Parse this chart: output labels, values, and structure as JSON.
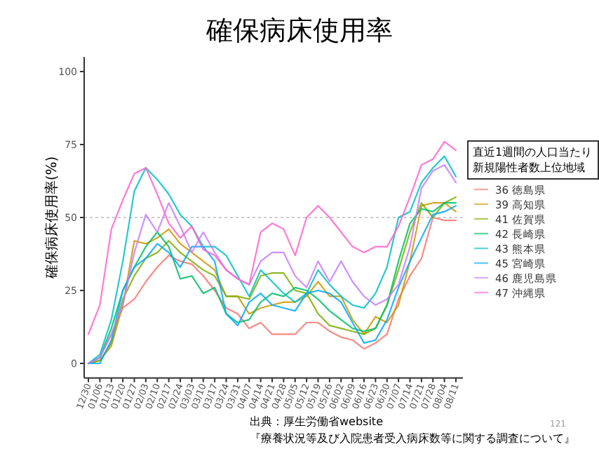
{
  "chart_data": {
    "type": "line",
    "title": "確保病床使用率",
    "ylabel": "確保病床使用率(%)",
    "legend_title": "直近1週間の人口当たり新規陽性者数上位地域",
    "legend": "right",
    "grid": false,
    "categories": [
      "12/30",
      "01/06",
      "01/13",
      "01/20",
      "01/27",
      "02/03",
      "02/10",
      "02/17",
      "02/24",
      "03/03",
      "03/10",
      "03/17",
      "03/24",
      "03/31",
      "04/07",
      "04/14",
      "04/21",
      "04/28",
      "05/05",
      "05/12",
      "05/19",
      "05/26",
      "06/02",
      "06/09",
      "06/16",
      "06/23",
      "06/30",
      "07/07",
      "07/14",
      "07/21",
      "07/28",
      "08/04",
      "08/11"
    ],
    "ylim": [
      -5,
      105
    ],
    "yticks": [
      0,
      25,
      50,
      75,
      100
    ],
    "ref_lines": [
      {
        "axis": "y",
        "value": 50,
        "color": "#cccccc",
        "line_style": "dotted"
      }
    ],
    "series": [
      {
        "name": "36 徳島県",
        "color": "#F8766D",
        "values": [
          0,
          2,
          10,
          19,
          22,
          28,
          33,
          37,
          35,
          34,
          30,
          25,
          19,
          17,
          12,
          14,
          10,
          10,
          10,
          14,
          14,
          11,
          9,
          8,
          5,
          7,
          10,
          22,
          30,
          36,
          50,
          49,
          49
        ]
      },
      {
        "name": "39 高知県",
        "color": "#CD9600",
        "values": [
          0,
          1,
          6,
          20,
          42,
          41,
          43,
          46,
          41,
          38,
          35,
          32,
          23,
          23,
          17,
          19,
          20,
          21,
          21,
          23,
          28,
          23,
          23,
          15,
          10,
          16,
          14,
          20,
          35,
          54,
          55,
          55,
          52
        ]
      },
      {
        "name": "41 佐賀県",
        "color": "#7CAE00",
        "values": [
          0,
          1,
          7,
          22,
          30,
          36,
          38,
          42,
          38,
          35,
          32,
          30,
          23,
          23,
          22,
          30,
          31,
          31,
          25,
          24,
          17,
          13,
          12,
          11,
          10,
          12,
          20,
          32,
          45,
          55,
          50,
          55,
          57
        ]
      },
      {
        "name": "42 長崎県",
        "color": "#00BE67",
        "values": [
          0,
          2,
          12,
          25,
          33,
          40,
          45,
          40,
          29,
          30,
          24,
          26,
          17,
          14,
          15,
          21,
          24,
          23,
          26,
          25,
          22,
          18,
          15,
          12,
          11,
          12,
          20,
          35,
          48,
          53,
          52,
          55,
          55
        ]
      },
      {
        "name": "43 熊本県",
        "color": "#00BFC4",
        "values": [
          0,
          3,
          15,
          35,
          59,
          67,
          63,
          58,
          51,
          47,
          40,
          40,
          37,
          30,
          23,
          32,
          28,
          24,
          21,
          24,
          32,
          27,
          23,
          20,
          19,
          24,
          33,
          50,
          52,
          62,
          67,
          71,
          64
        ]
      },
      {
        "name": "45 宮崎県",
        "color": "#00A9FF",
        "values": [
          0,
          0,
          8,
          25,
          33,
          36,
          41,
          38,
          33,
          40,
          40,
          35,
          17,
          13,
          21,
          24,
          20,
          19,
          18,
          24,
          25,
          24,
          21,
          14,
          7,
          8,
          15,
          26,
          35,
          43,
          51,
          52,
          54
        ]
      },
      {
        "name": "46 鹿児島県",
        "color": "#C77CFF",
        "values": [
          0,
          2,
          10,
          20,
          38,
          51,
          45,
          55,
          47,
          38,
          45,
          38,
          32,
          29,
          27,
          35,
          38,
          38,
          30,
          26,
          35,
          28,
          35,
          28,
          23,
          20,
          22,
          27,
          40,
          60,
          66,
          68,
          62
        ]
      },
      {
        "name": "47 沖縄県",
        "color": "#FF61CC",
        "values": [
          10,
          20,
          46,
          56,
          65,
          67,
          58,
          48,
          43,
          47,
          39,
          37,
          32,
          29,
          27,
          45,
          48,
          46,
          37,
          50,
          54,
          50,
          45,
          40,
          38,
          40,
          40,
          47,
          57,
          68,
          70,
          76,
          73
        ]
      }
    ],
    "annotations": [
      "出典：厚生労働省website",
      "『療養状況等及び入院患者受入病床数等に関する調査について』",
      "121"
    ]
  }
}
